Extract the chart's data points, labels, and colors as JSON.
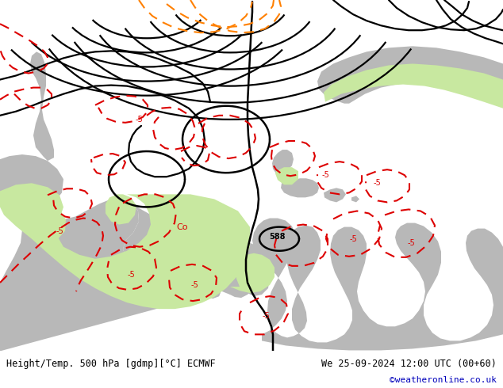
{
  "title_left": "Height/Temp. 500 hPa [gdmp][°C] ECMWF",
  "title_right": "We 25-09-2024 12:00 UTC (00+60)",
  "credit": "©weatheronline.co.uk",
  "bg_ocean": "#d0d0d0",
  "bg_land": "#b8b8b8",
  "green_fill": "#c8e8a0",
  "black_line": "#000000",
  "red_line": "#dd0000",
  "orange_line": "#ff8000",
  "footer_bg": "#ffffff",
  "text_color": "#000000",
  "credit_color": "#0000bb",
  "figwidth": 6.34,
  "figheight": 4.9,
  "dpi": 100
}
